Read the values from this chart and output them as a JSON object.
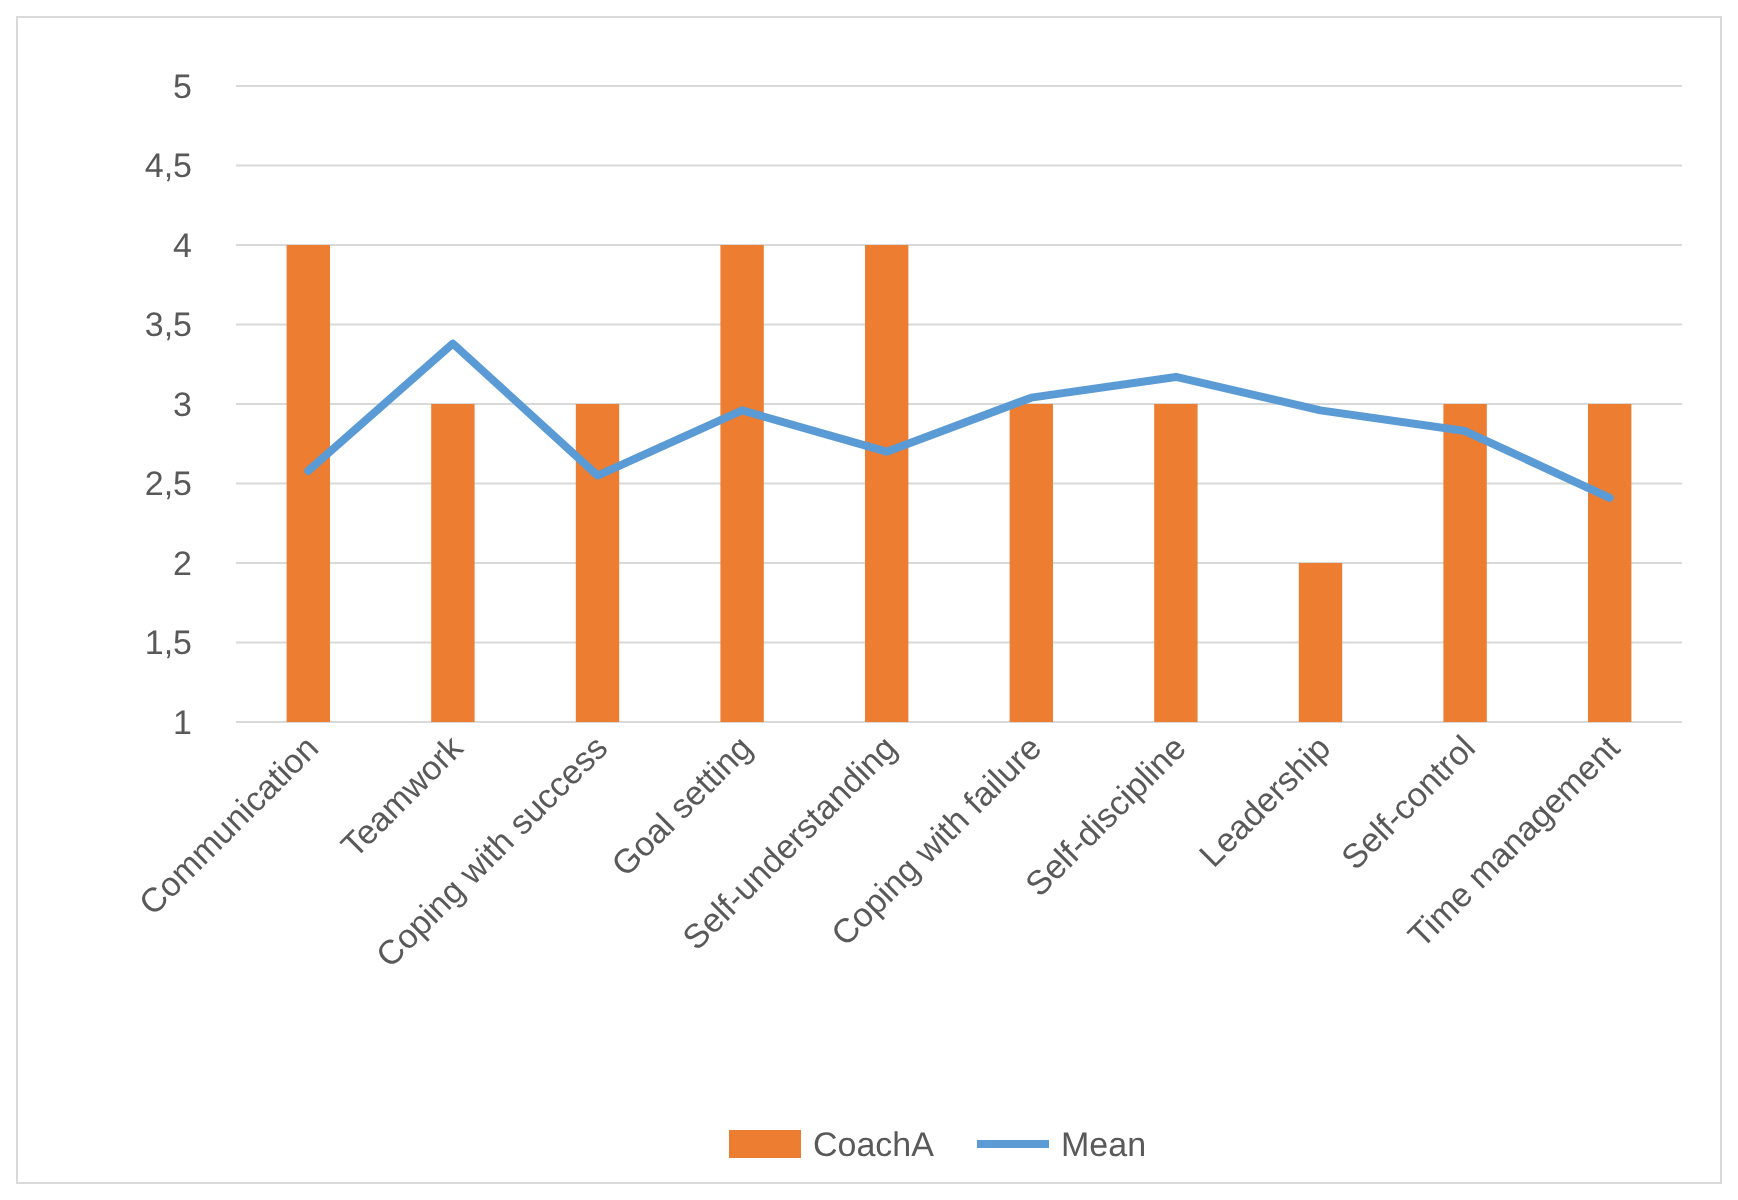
{
  "chart_data": {
    "type": "bar",
    "categories": [
      "Communication",
      "Teamwork",
      "Coping with success",
      "Goal setting",
      "Self-understanding",
      "Coping with failure",
      "Self-discipline",
      "Leadership",
      "Self-control",
      "Time management"
    ],
    "series": [
      {
        "name": "CoachA",
        "color": "#ed7d31",
        "values": [
          4,
          3,
          3,
          4,
          4,
          3,
          3,
          2,
          3,
          3
        ]
      },
      {
        "name": "Mean",
        "type": "line",
        "color": "#5b9bd5",
        "values": [
          2.58,
          3.38,
          2.55,
          2.96,
          2.7,
          3.04,
          3.17,
          2.96,
          2.83,
          2.41
        ]
      }
    ],
    "ylim": [
      1,
      5
    ],
    "yticks": [
      1,
      {
        "value": 1.5,
        "label": "1,5"
      },
      2,
      {
        "value": 2.5,
        "label": "2,5"
      },
      3,
      {
        "value": 3.5,
        "label": "3,5"
      },
      4,
      {
        "value": 4.5,
        "label": "4,5"
      },
      5
    ],
    "grid": "y",
    "legend": "bottom",
    "marker": "none",
    "line_style": "solid"
  }
}
